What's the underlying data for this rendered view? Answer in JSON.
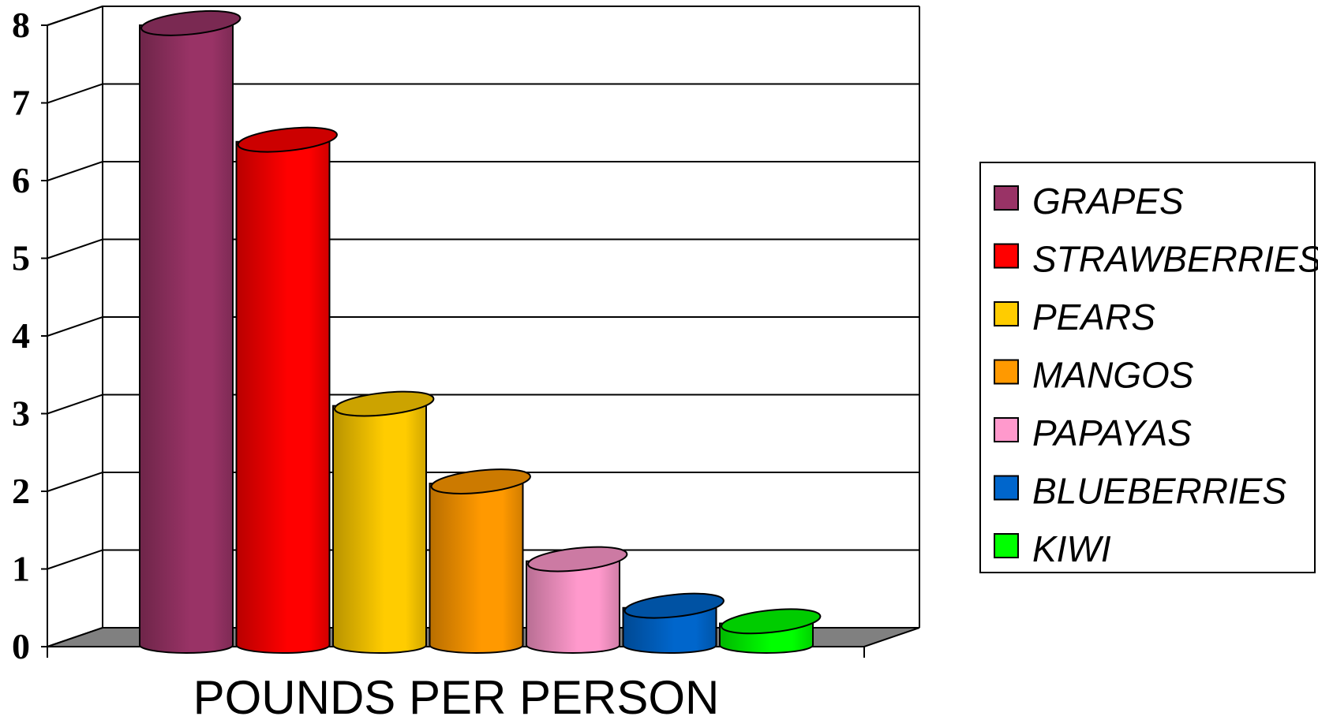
{
  "chart_data": {
    "type": "bar",
    "style": "3d-cylinder",
    "categories": [
      "GRAPES",
      "STRAWBERRIES",
      "PEARS",
      "MANGOS",
      "PAPAYAS",
      "BLUEBERRIES",
      "KIWI"
    ],
    "series": [
      {
        "values": [
          8.0,
          6.5,
          3.1,
          2.1,
          1.1,
          0.5,
          0.3
        ]
      }
    ],
    "colors": [
      "#993366",
      "#FF0000",
      "#FFCC00",
      "#FF9900",
      "#FF99CC",
      "#0066CC",
      "#00FF00"
    ],
    "title": "",
    "xlabel": "POUNDS PER PERSON",
    "ylabel": "",
    "ylim": [
      0,
      8
    ],
    "yticks": [
      "0",
      "1",
      "2",
      "3",
      "4",
      "5",
      "6",
      "7",
      "8"
    ],
    "grid": true,
    "legend_position": "right",
    "legend_entries": [
      "GRAPES",
      "STRAWBERRIES",
      "PEARS",
      "MANGOS",
      "PAPAYAS",
      "BLUEBERRIES",
      "KIWI"
    ]
  }
}
